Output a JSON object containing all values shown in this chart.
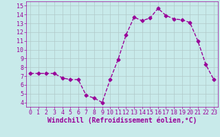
{
  "x": [
    0,
    1,
    2,
    3,
    4,
    5,
    6,
    7,
    8,
    9,
    10,
    11,
    12,
    13,
    14,
    15,
    16,
    17,
    18,
    19,
    20,
    21,
    22,
    23
  ],
  "y": [
    7.3,
    7.3,
    7.3,
    7.3,
    6.8,
    6.6,
    6.6,
    4.8,
    4.5,
    4.0,
    6.6,
    8.9,
    11.7,
    13.7,
    13.3,
    13.6,
    14.7,
    13.9,
    13.5,
    13.4,
    13.1,
    11.0,
    8.3,
    6.6
  ],
  "line_color": "#990099",
  "marker": "D",
  "marker_size": 2.5,
  "bg_color": "#c8eaea",
  "grid_color": "#b0c8c8",
  "xlabel": "Windchill (Refroidissement éolien,°C)",
  "xlabel_color": "#990099",
  "ylim": [
    3.5,
    15.5
  ],
  "xlim": [
    -0.5,
    23.5
  ],
  "yticks": [
    4,
    5,
    6,
    7,
    8,
    9,
    10,
    11,
    12,
    13,
    14,
    15
  ],
  "xticks": [
    0,
    1,
    2,
    3,
    4,
    5,
    6,
    7,
    8,
    9,
    10,
    11,
    12,
    13,
    14,
    15,
    16,
    17,
    18,
    19,
    20,
    21,
    22,
    23
  ],
  "tick_color": "#990099",
  "tick_fontsize": 6.0,
  "xlabel_fontsize": 7.0,
  "linewidth": 1.0
}
